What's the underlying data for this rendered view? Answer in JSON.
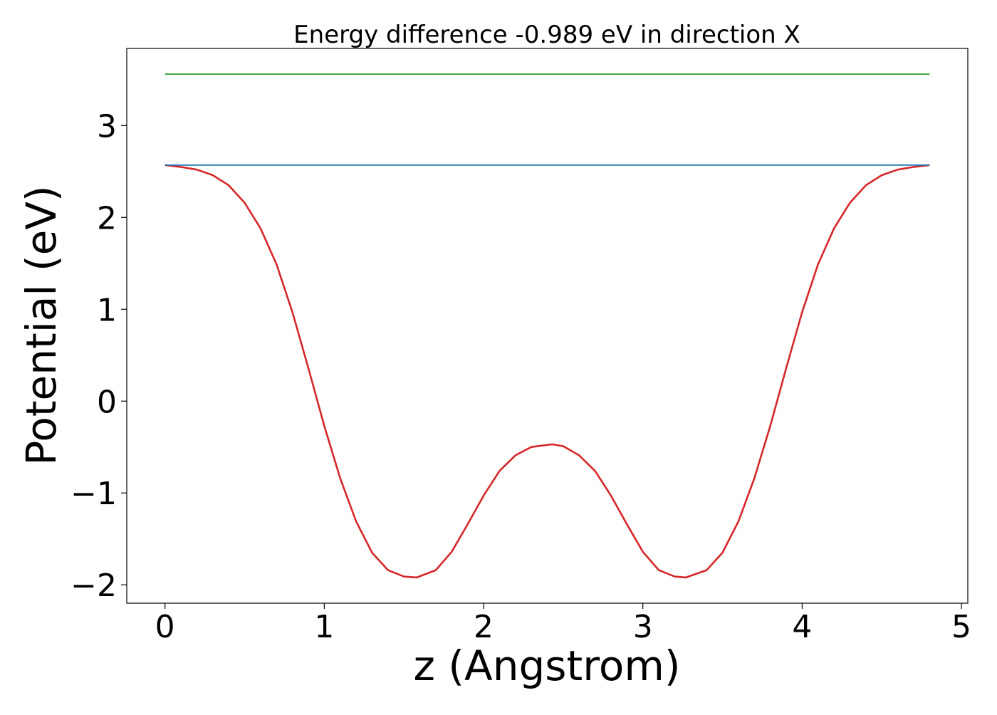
{
  "chart_data": {
    "type": "line",
    "title": "Energy difference -0.989 eV in direction X",
    "xlabel": "z (Angstrom)",
    "ylabel": "Potential (eV)",
    "xlim": [
      -0.24,
      5.04
    ],
    "ylim": [
      -2.2,
      3.84
    ],
    "xticks": [
      0,
      1,
      2,
      3,
      4,
      5
    ],
    "yticks": [
      -2,
      -1,
      0,
      1,
      2,
      3
    ],
    "xtick_labels": [
      "0",
      "1",
      "2",
      "3",
      "4",
      "5"
    ],
    "ytick_labels": [
      "−2",
      "−1",
      "0",
      "1",
      "2",
      "3"
    ],
    "grid": false,
    "legend": "none",
    "series": [
      {
        "color": "#d62728",
        "x": [
          0,
          0.1,
          0.2,
          0.3,
          0.4,
          0.5,
          0.6,
          0.7,
          0.8,
          0.9,
          1.0,
          1.1,
          1.2,
          1.3,
          1.4,
          1.5,
          1.58,
          1.7,
          1.8,
          1.9,
          2.0,
          2.1,
          2.2,
          2.3,
          2.43,
          2.5,
          2.6,
          2.7,
          2.8,
          2.9,
          3.0,
          3.1,
          3.2,
          3.27,
          3.4,
          3.5,
          3.6,
          3.7,
          3.8,
          3.9,
          4.0,
          4.1,
          4.2,
          4.3,
          4.4,
          4.5,
          4.6,
          4.7,
          4.8
        ],
        "y": [
          2.57,
          2.55,
          2.52,
          2.46,
          2.35,
          2.16,
          1.88,
          1.49,
          0.97,
          0.36,
          -0.27,
          -0.84,
          -1.31,
          -1.65,
          -1.84,
          -1.91,
          -1.92,
          -1.84,
          -1.64,
          -1.34,
          -1.03,
          -0.76,
          -0.59,
          -0.5,
          -0.47,
          -0.49,
          -0.59,
          -0.76,
          -1.03,
          -1.34,
          -1.64,
          -1.84,
          -1.91,
          -1.92,
          -1.84,
          -1.65,
          -1.31,
          -0.84,
          -0.27,
          0.36,
          0.97,
          1.49,
          1.88,
          2.16,
          2.35,
          2.46,
          2.52,
          2.55,
          2.57
        ]
      },
      {
        "color": "#1f77b4",
        "x": [
          0,
          4.8
        ],
        "y": [
          2.57,
          2.57
        ]
      },
      {
        "color": "#2ca02c",
        "x": [
          0,
          4.8
        ],
        "y": [
          3.56,
          3.56
        ]
      }
    ]
  }
}
